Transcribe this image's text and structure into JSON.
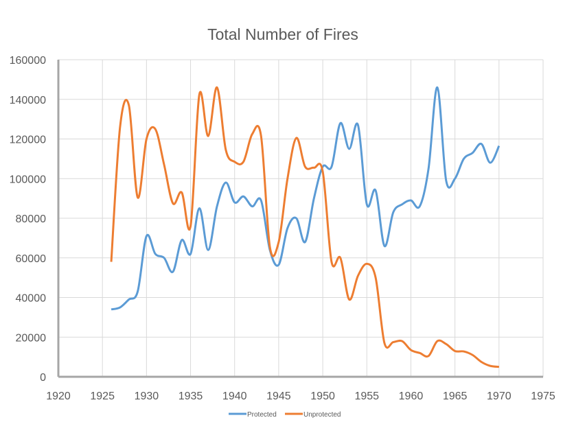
{
  "chart_data": {
    "type": "line",
    "title": "Total Number of Fires",
    "xlabel": "",
    "ylabel": "",
    "xlim": [
      1920,
      1975
    ],
    "ylim": [
      0,
      160000
    ],
    "xticks": [
      1920,
      1925,
      1930,
      1935,
      1940,
      1945,
      1950,
      1955,
      1960,
      1965,
      1970,
      1975
    ],
    "yticks": [
      0,
      20000,
      40000,
      60000,
      80000,
      100000,
      120000,
      140000,
      160000
    ],
    "grid": true,
    "smooth": true,
    "legend_position": "bottom",
    "x": [
      1926,
      1927,
      1928,
      1929,
      1930,
      1931,
      1932,
      1933,
      1934,
      1935,
      1936,
      1937,
      1938,
      1939,
      1940,
      1941,
      1942,
      1943,
      1944,
      1945,
      1946,
      1947,
      1948,
      1949,
      1950,
      1951,
      1952,
      1953,
      1954,
      1955,
      1956,
      1957,
      1958,
      1959,
      1960,
      1961,
      1962,
      1963,
      1964,
      1965,
      1966,
      1967,
      1968,
      1969,
      1970
    ],
    "series": [
      {
        "name": "Protected",
        "color": "#5b9bd5",
        "values": [
          34000,
          35000,
          39000,
          43000,
          71000,
          62000,
          60000,
          53000,
          69000,
          62000,
          85000,
          64000,
          86000,
          98000,
          88000,
          91000,
          86000,
          89000,
          64000,
          56500,
          75000,
          80000,
          68000,
          90000,
          106000,
          106000,
          128000,
          115000,
          127000,
          87000,
          94000,
          66000,
          83000,
          87000,
          89000,
          86000,
          105000,
          146000,
          99000,
          100000,
          110000,
          113000,
          117500,
          108000,
          116500
        ]
      },
      {
        "name": "Unprotected",
        "color": "#ed7d31",
        "values": [
          58000,
          126000,
          137000,
          90500,
          120000,
          125000,
          107000,
          87500,
          93000,
          76000,
          142500,
          121500,
          146000,
          114500,
          108500,
          108500,
          122500,
          121500,
          65500,
          68000,
          100000,
          120500,
          106000,
          105500,
          103500,
          58000,
          60000,
          39000,
          51000,
          57000,
          50000,
          17000,
          17500,
          18000,
          13500,
          12000,
          10500,
          18000,
          16500,
          13000,
          12800,
          11000,
          7500,
          5500,
          5000
        ]
      }
    ]
  }
}
